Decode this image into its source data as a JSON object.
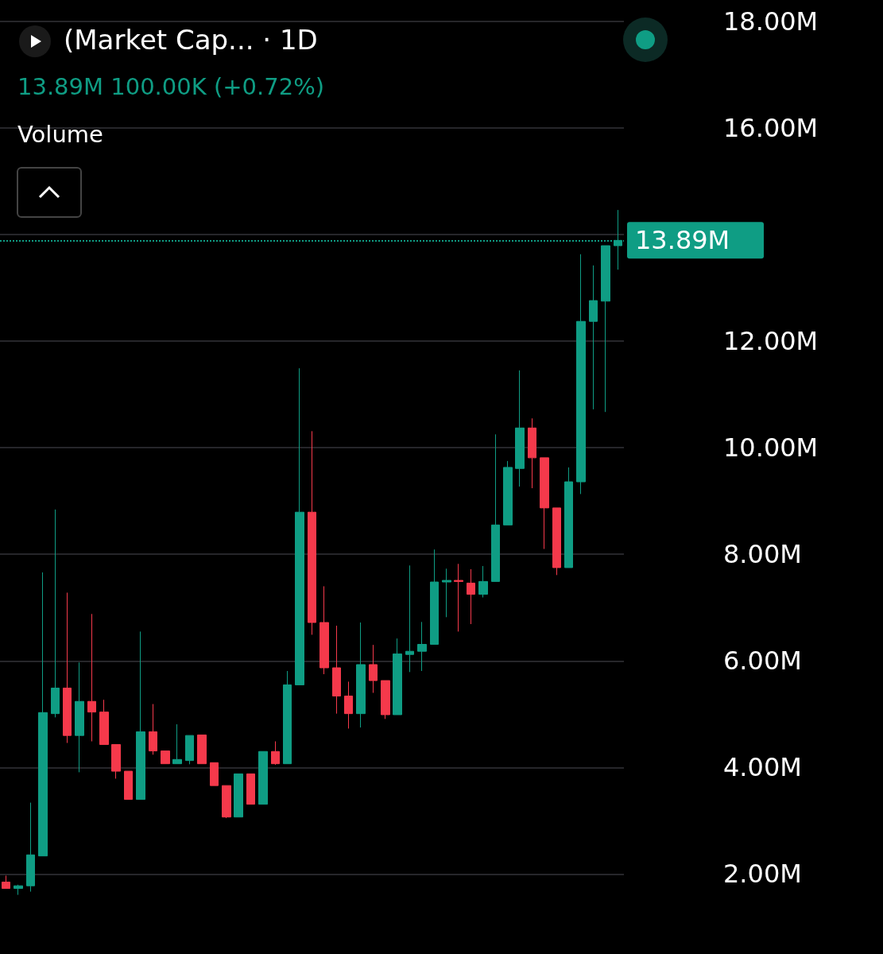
{
  "chart_data": {
    "type": "candlestick",
    "title": "(Market Cap... · 1D",
    "subtitle": "13.89M 100.00K (+0.72%)",
    "annotations": [
      "Volume"
    ],
    "categories": [
      null,
      null,
      null,
      null,
      null,
      null,
      null,
      null,
      null,
      null,
      null,
      null,
      null,
      null,
      null,
      null,
      null,
      null,
      null,
      null,
      null,
      null,
      null,
      null,
      null,
      null,
      null,
      null,
      null,
      null,
      null,
      null,
      null,
      null,
      null,
      null,
      null,
      null,
      null,
      null,
      null,
      null,
      null,
      null,
      null,
      null,
      null,
      null,
      null,
      null,
      null
    ],
    "ohlc": [
      [
        1.85,
        1.97,
        1.73,
        1.73
      ],
      [
        1.73,
        1.8,
        1.61,
        1.78
      ],
      [
        1.78,
        3.34,
        1.67,
        2.36
      ],
      [
        2.34,
        7.66,
        2.34,
        5.03
      ],
      [
        5.01,
        8.84,
        4.94,
        5.49
      ],
      [
        5.49,
        7.28,
        4.46,
        4.6
      ],
      [
        4.6,
        5.97,
        3.91,
        5.24
      ],
      [
        5.24,
        6.88,
        4.49,
        5.04
      ],
      [
        5.04,
        5.27,
        4.43,
        4.43
      ],
      [
        4.43,
        4.43,
        3.79,
        3.93
      ],
      [
        3.93,
        3.93,
        3.4,
        3.4
      ],
      [
        3.4,
        6.55,
        3.4,
        4.67
      ],
      [
        4.67,
        5.19,
        4.24,
        4.31
      ],
      [
        4.31,
        4.31,
        4.07,
        4.07
      ],
      [
        4.07,
        4.81,
        4.07,
        4.15
      ],
      [
        4.13,
        4.6,
        4.06,
        4.6
      ],
      [
        4.61,
        4.61,
        4.07,
        4.07
      ],
      [
        4.09,
        4.09,
        3.66,
        3.66
      ],
      [
        3.66,
        3.66,
        3.05,
        3.07
      ],
      [
        3.07,
        3.88,
        3.07,
        3.88
      ],
      [
        3.88,
        3.88,
        3.31,
        3.31
      ],
      [
        3.31,
        4.3,
        3.31,
        4.3
      ],
      [
        4.3,
        4.49,
        4.05,
        4.07
      ],
      [
        4.07,
        5.81,
        4.07,
        5.55
      ],
      [
        5.55,
        11.49,
        5.55,
        8.79
      ],
      [
        8.79,
        10.31,
        6.49,
        6.72
      ],
      [
        6.72,
        7.4,
        5.75,
        5.87
      ],
      [
        5.87,
        6.66,
        5.01,
        5.34
      ],
      [
        5.34,
        5.61,
        4.73,
        5.01
      ],
      [
        5.01,
        6.72,
        4.75,
        5.93
      ],
      [
        5.93,
        6.3,
        5.4,
        5.63
      ],
      [
        5.63,
        5.63,
        4.91,
        4.99
      ],
      [
        4.99,
        6.42,
        4.99,
        6.13
      ],
      [
        6.12,
        7.79,
        5.79,
        6.18
      ],
      [
        6.18,
        6.73,
        5.81,
        6.31
      ],
      [
        6.31,
        8.09,
        6.31,
        7.48
      ],
      [
        7.48,
        7.73,
        6.82,
        7.51
      ],
      [
        7.51,
        7.82,
        6.55,
        7.49
      ],
      [
        7.46,
        7.72,
        6.69,
        7.25
      ],
      [
        7.25,
        7.78,
        7.19,
        7.49
      ],
      [
        7.49,
        10.25,
        7.49,
        8.55
      ],
      [
        8.55,
        9.75,
        8.55,
        9.63
      ],
      [
        9.61,
        11.45,
        9.27,
        10.37
      ],
      [
        10.37,
        10.55,
        9.24,
        9.81
      ],
      [
        9.81,
        9.81,
        8.1,
        8.87
      ],
      [
        8.87,
        8.87,
        7.61,
        7.75
      ],
      [
        7.75,
        9.63,
        7.75,
        9.36
      ],
      [
        9.36,
        13.63,
        9.13,
        12.37
      ],
      [
        12.37,
        13.42,
        10.72,
        12.76
      ],
      [
        12.75,
        13.79,
        10.67,
        13.79
      ],
      [
        13.79,
        14.46,
        13.34,
        13.89
      ]
    ],
    "ylim": [
      0.5,
      18.4
    ],
    "yticks": [
      {
        "value": 2,
        "label": "2.00M"
      },
      {
        "value": 4,
        "label": "4.00M"
      },
      {
        "value": 6,
        "label": "6.00M"
      },
      {
        "value": 8,
        "label": "8.00M"
      },
      {
        "value": 10,
        "label": "10.00M"
      },
      {
        "value": 12,
        "label": "12.00M"
      },
      {
        "value": 14,
        "label": null
      },
      {
        "value": 16,
        "label": "16.00M"
      },
      {
        "value": 18,
        "label": "18.00M"
      }
    ],
    "ref_lines": [
      {
        "axis": "y",
        "value": 13.89,
        "label": "13.89M",
        "color": "#0f9d84",
        "line_style": "dotted"
      }
    ],
    "grid": "y",
    "tick_labels": "y"
  }
}
